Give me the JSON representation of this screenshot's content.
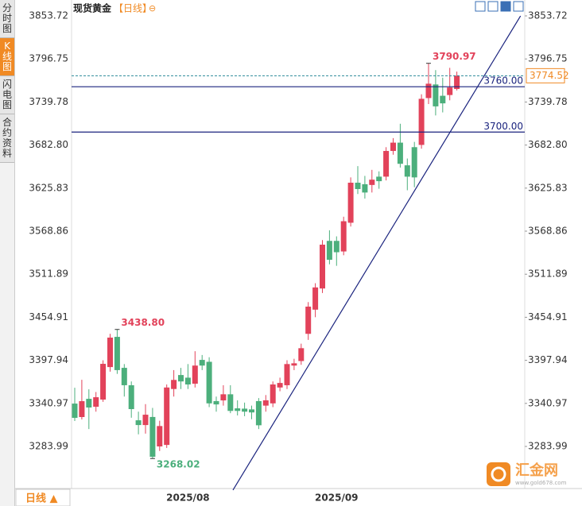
{
  "sidebar": {
    "tabs": [
      "分时图",
      "K线图",
      "闪电图",
      "合约资料"
    ],
    "active": 1
  },
  "header": {
    "title": "现货黄金",
    "period": "【日线】",
    "icon": "⊖"
  },
  "footer": {
    "period": "日线 ▲"
  },
  "watermark": {
    "name": "汇金网",
    "url": "www.gold678.com"
  },
  "chart_data": {
    "type": "candlestick",
    "categories": [
      null,
      null,
      null,
      null,
      null,
      null,
      null,
      null,
      null,
      null,
      null,
      null,
      null,
      null,
      null,
      null,
      "2025/08",
      null,
      null,
      null,
      null,
      null,
      null,
      null,
      null,
      null,
      null,
      null,
      null,
      null,
      null,
      null,
      null,
      null,
      null,
      null,
      null,
      "2025/09",
      null,
      null,
      null,
      null,
      null,
      null,
      null,
      null,
      null,
      null,
      null,
      null,
      null,
      null,
      null,
      null,
      null
    ],
    "series": [
      {
        "up_color": "#e2425a",
        "down_color": "#4caf7c",
        "open": [
          3340.7,
          3322.9,
          3347,
          3336.5,
          3346,
          3389,
          3429,
          3388,
          3365,
          3318.6,
          3312.3,
          3323,
          3284,
          3286,
          3360,
          3378.5,
          3375,
          3367,
          3398.5,
          3396,
          3344,
          3344.9,
          3353,
          3334.4,
          3334,
          3333,
          3344,
          3338,
          3341,
          3362,
          3365,
          3391,
          3397,
          3433,
          3465,
          3493,
          3556,
          3556,
          3542,
          3580,
          3633,
          3631,
          3630,
          3641,
          3641,
          3675,
          3686,
          3656,
          3680,
          3683,
          3745,
          3763,
          3748,
          3749,
          3757
        ],
        "high": [
          3361.7,
          3372.2,
          3359.6,
          3356,
          3398,
          3433,
          3438.8,
          3393,
          3370,
          3330,
          3340,
          3335,
          3318,
          3366,
          3385,
          3388,
          3393,
          3410,
          3405,
          3402,
          3350,
          3365,
          3365,
          3345,
          3342,
          3338,
          3348,
          3352,
          3370,
          3375,
          3398,
          3400,
          3420,
          3475,
          3500,
          3557,
          3570,
          3562,
          3588,
          3640,
          3655,
          3642,
          3650,
          3648,
          3680,
          3692,
          3711,
          3665,
          3687,
          3750,
          3790.97,
          3782,
          3772,
          3785,
          3780
        ],
        "low": [
          3317.6,
          3319.7,
          3307,
          3330,
          3343,
          3383,
          3380,
          3350,
          3322,
          3300,
          3301,
          3268.02,
          3278,
          3282,
          3350,
          3360,
          3360,
          3362,
          3385,
          3336,
          3330,
          3338,
          3328,
          3325,
          3324,
          3320,
          3307,
          3330,
          3336,
          3357,
          3360,
          3385,
          3392,
          3425,
          3455,
          3487,
          3525,
          3523,
          3537,
          3575,
          3618,
          3612,
          3620,
          3625,
          3636,
          3670,
          3653,
          3623,
          3627,
          3678,
          3737,
          3722,
          3726,
          3742,
          3755
        ],
        "close": [
          3321.8,
          3343.9,
          3335.5,
          3349.1,
          3393.3,
          3428,
          3385,
          3365,
          3333.4,
          3312.3,
          3326,
          3270.3,
          3311,
          3362,
          3372,
          3370,
          3366,
          3391,
          3391,
          3341,
          3339.6,
          3353,
          3331,
          3331,
          3330,
          3329,
          3312,
          3345,
          3366,
          3368,
          3393,
          3394,
          3414,
          3469,
          3494.4,
          3551,
          3531,
          3541,
          3582,
          3633,
          3624.6,
          3620,
          3637,
          3635,
          3675,
          3686,
          3658,
          3641,
          3640,
          3744,
          3764,
          3734,
          3738,
          3759,
          3774.52
        ]
      }
    ],
    "ylim": [
      3228.3,
      3869.5
    ],
    "yticks": [
      3853.72,
      3796.75,
      3739.78,
      {
        "value": 3682.8,
        "label": "3682.80"
      },
      3625.83,
      3568.86,
      3511.89,
      3454.91,
      3397.94,
      3340.97,
      3283.99
    ],
    "annotations": [
      {
        "x": 6,
        "value": 3438.8,
        "label": "3438.80",
        "color": "#e2425a"
      },
      {
        "x": 11,
        "value": 3268.02,
        "label": "3268.02",
        "color": "#4caf7c"
      },
      {
        "x": 50,
        "value": 3790.97,
        "label": "3790.97",
        "color": "#e2425a"
      }
    ],
    "hlines": [
      {
        "value": 3760,
        "label": "3760.00",
        "color": "#1a237e"
      },
      {
        "value": 3700,
        "label": "3700.00",
        "color": "#1a237e"
      }
    ],
    "last_price": 3774.52,
    "last_color": "#f08a24",
    "trendline": {
      "x": [
        22.36,
        63.0
      ],
      "y": [
        3226.2,
        3853.7
      ],
      "color": "#1a237e"
    }
  }
}
